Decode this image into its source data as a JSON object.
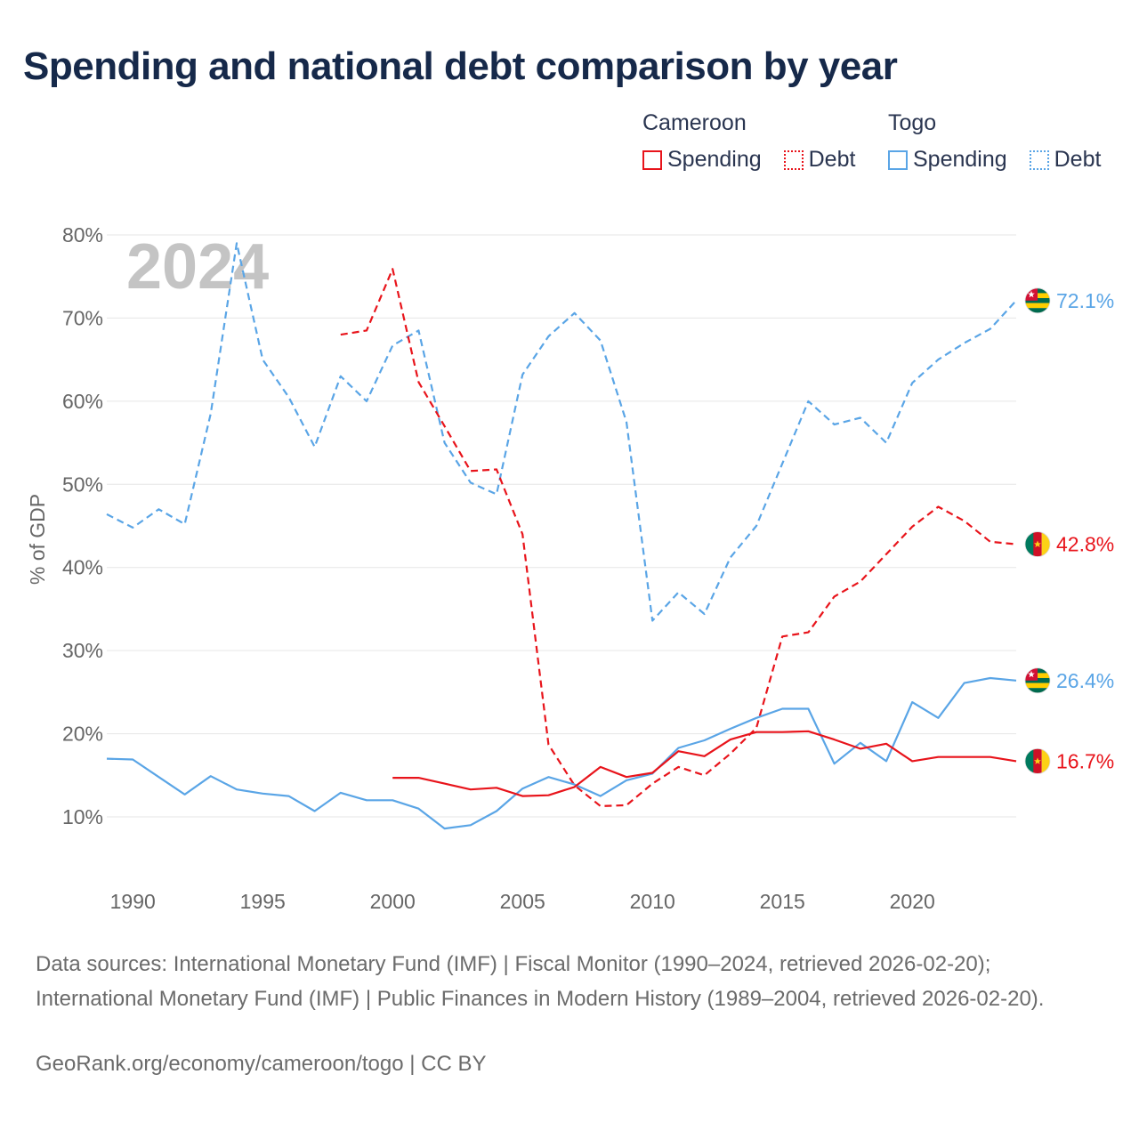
{
  "title": "Spending and national debt comparison by year",
  "legend": {
    "groups": [
      {
        "name": "Cameroon",
        "items": [
          {
            "label": "Spending",
            "style": "solid",
            "color": "#e8141b"
          },
          {
            "label": "Debt",
            "style": "dotted",
            "color": "#e8141b"
          }
        ]
      },
      {
        "name": "Togo",
        "items": [
          {
            "label": "Spending",
            "style": "solid",
            "color": "#5aa5e6"
          },
          {
            "label": "Debt",
            "style": "dotted",
            "color": "#5aa5e6"
          }
        ]
      }
    ]
  },
  "colors": {
    "cameroon": "#e8141b",
    "togo": "#5aa5e6",
    "grid": "#e6e6e6",
    "axis_text": "#666666",
    "year_watermark": "#c4c4c4"
  },
  "chart_data": {
    "type": "line",
    "title": "Spending and national debt comparison by year",
    "year_label": "2024",
    "ylabel": "% of GDP",
    "xlabel": "",
    "xlim": [
      1989,
      2024
    ],
    "ylim": [
      3,
      83
    ],
    "yticks": [
      10,
      20,
      30,
      40,
      50,
      60,
      70,
      80
    ],
    "ytick_labels": [
      "10%",
      "20%",
      "30%",
      "40%",
      "50%",
      "60%",
      "70%",
      "80%"
    ],
    "xticks": [
      1990,
      1995,
      2000,
      2005,
      2010,
      2015,
      2020
    ],
    "xtick_labels": [
      "1990",
      "1995",
      "2000",
      "2005",
      "2010",
      "2015",
      "2020"
    ],
    "series": [
      {
        "name": "Togo Debt",
        "country": "Togo",
        "measure": "Debt",
        "style": "dashed",
        "color": "#5aa5e6",
        "end_label": "72.1%",
        "flag": "togo-flag",
        "points": [
          [
            1989,
            46.4
          ],
          [
            1990,
            44.8
          ],
          [
            1991,
            47.0
          ],
          [
            1992,
            45.2
          ],
          [
            1993,
            58.5
          ],
          [
            1994,
            79.0
          ],
          [
            1995,
            65.0
          ],
          [
            1996,
            60.5
          ],
          [
            1997,
            54.5
          ],
          [
            1998,
            63.0
          ],
          [
            1999,
            60.0
          ],
          [
            2000,
            66.7
          ],
          [
            2001,
            68.5
          ],
          [
            2002,
            55.0
          ],
          [
            2003,
            50.2
          ],
          [
            2004,
            48.8
          ],
          [
            2005,
            63.2
          ],
          [
            2006,
            67.8
          ],
          [
            2007,
            70.6
          ],
          [
            2008,
            67.3
          ],
          [
            2009,
            57.5
          ],
          [
            2010,
            33.6
          ],
          [
            2011,
            37.0
          ],
          [
            2012,
            34.4
          ],
          [
            2013,
            41.2
          ],
          [
            2014,
            45.0
          ],
          [
            2015,
            52.5
          ],
          [
            2016,
            60.0
          ],
          [
            2017,
            57.2
          ],
          [
            2018,
            58.0
          ],
          [
            2019,
            55.0
          ],
          [
            2020,
            62.2
          ],
          [
            2021,
            65.0
          ],
          [
            2022,
            67.0
          ],
          [
            2023,
            68.7
          ],
          [
            2024,
            72.1
          ]
        ]
      },
      {
        "name": "Cameroon Debt",
        "country": "Cameroon",
        "measure": "Debt",
        "style": "dashed",
        "color": "#e8141b",
        "end_label": "42.8%",
        "flag": "cameroon-flag",
        "points": [
          [
            1998,
            68.0
          ],
          [
            1999,
            68.5
          ],
          [
            2000,
            75.9
          ],
          [
            2001,
            62.3
          ],
          [
            2002,
            57.0
          ],
          [
            2003,
            51.6
          ],
          [
            2004,
            51.8
          ],
          [
            2005,
            44.0
          ],
          [
            2006,
            18.7
          ],
          [
            2007,
            13.8
          ],
          [
            2008,
            11.3
          ],
          [
            2009,
            11.4
          ],
          [
            2010,
            14.0
          ],
          [
            2011,
            16.0
          ],
          [
            2012,
            15.0
          ],
          [
            2013,
            17.6
          ],
          [
            2014,
            20.7
          ],
          [
            2015,
            31.7
          ],
          [
            2016,
            32.2
          ],
          [
            2017,
            36.5
          ],
          [
            2018,
            38.3
          ],
          [
            2019,
            41.6
          ],
          [
            2020,
            44.9
          ],
          [
            2021,
            47.3
          ],
          [
            2022,
            45.6
          ],
          [
            2023,
            43.1
          ],
          [
            2024,
            42.8
          ]
        ]
      },
      {
        "name": "Togo Spending",
        "country": "Togo",
        "measure": "Spending",
        "style": "solid",
        "color": "#5aa5e6",
        "end_label": "26.4%",
        "flag": "togo-flag",
        "points": [
          [
            1989,
            17.0
          ],
          [
            1990,
            16.9
          ],
          [
            1991,
            14.8
          ],
          [
            1992,
            12.7
          ],
          [
            1993,
            14.9
          ],
          [
            1994,
            13.3
          ],
          [
            1995,
            12.8
          ],
          [
            1996,
            12.5
          ],
          [
            1997,
            10.7
          ],
          [
            1998,
            12.9
          ],
          [
            1999,
            12.0
          ],
          [
            2000,
            12.0
          ],
          [
            2001,
            11.0
          ],
          [
            2002,
            8.6
          ],
          [
            2003,
            9.0
          ],
          [
            2004,
            10.7
          ],
          [
            2005,
            13.4
          ],
          [
            2006,
            14.8
          ],
          [
            2007,
            13.9
          ],
          [
            2008,
            12.5
          ],
          [
            2009,
            14.4
          ],
          [
            2010,
            15.2
          ],
          [
            2011,
            18.3
          ],
          [
            2012,
            19.2
          ],
          [
            2013,
            20.6
          ],
          [
            2014,
            21.9
          ],
          [
            2015,
            23.0
          ],
          [
            2016,
            23.0
          ],
          [
            2017,
            16.4
          ],
          [
            2018,
            18.9
          ],
          [
            2019,
            16.7
          ],
          [
            2020,
            23.8
          ],
          [
            2021,
            21.9
          ],
          [
            2022,
            26.1
          ],
          [
            2023,
            26.7
          ],
          [
            2024,
            26.4
          ]
        ]
      },
      {
        "name": "Cameroon Spending",
        "country": "Cameroon",
        "measure": "Spending",
        "style": "solid",
        "color": "#e8141b",
        "end_label": "16.7%",
        "flag": "cameroon-flag",
        "points": [
          [
            2000,
            14.7
          ],
          [
            2001,
            14.7
          ],
          [
            2002,
            14.0
          ],
          [
            2003,
            13.3
          ],
          [
            2004,
            13.5
          ],
          [
            2005,
            12.5
          ],
          [
            2006,
            12.6
          ],
          [
            2007,
            13.6
          ],
          [
            2008,
            16.0
          ],
          [
            2009,
            14.8
          ],
          [
            2010,
            15.3
          ],
          [
            2011,
            17.9
          ],
          [
            2012,
            17.3
          ],
          [
            2013,
            19.3
          ],
          [
            2014,
            20.2
          ],
          [
            2015,
            20.2
          ],
          [
            2016,
            20.3
          ],
          [
            2017,
            19.3
          ],
          [
            2018,
            18.2
          ],
          [
            2019,
            18.8
          ],
          [
            2020,
            16.7
          ],
          [
            2021,
            17.2
          ],
          [
            2022,
            17.2
          ],
          [
            2023,
            17.2
          ],
          [
            2024,
            16.7
          ]
        ]
      }
    ]
  },
  "footer": {
    "sources": "Data sources: International Monetary Fund (IMF) | Fiscal Monitor (1990–2024, retrieved 2026-02-20); International Monetary Fund (IMF) | Public Finances in Modern History (1989–2004, retrieved 2026-02-20).",
    "credit": "GeoRank.org/economy/cameroon/togo | CC BY"
  }
}
